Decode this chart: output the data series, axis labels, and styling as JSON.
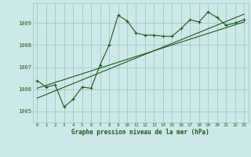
{
  "background_color": "#cce8e8",
  "grid_color": "#aacccc",
  "line_color": "#1a5c1a",
  "title": "Graphe pression niveau de la mer (hPa)",
  "xlim": [
    -0.5,
    23.5
  ],
  "ylim": [
    1004.5,
    1009.9
  ],
  "yticks": [
    1005,
    1006,
    1007,
    1008,
    1009
  ],
  "xticks": [
    0,
    1,
    2,
    3,
    4,
    5,
    6,
    7,
    8,
    9,
    10,
    11,
    12,
    13,
    14,
    15,
    16,
    17,
    18,
    19,
    20,
    21,
    22,
    23
  ],
  "series1_x": [
    0,
    1,
    2,
    3,
    4,
    5,
    6,
    7,
    8,
    9,
    10,
    11,
    12,
    13,
    14,
    15,
    16,
    17,
    18,
    19,
    20,
    21,
    22,
    23
  ],
  "series1_y": [
    1006.4,
    1006.1,
    1006.2,
    1005.2,
    1005.55,
    1006.1,
    1006.05,
    1007.1,
    1008.0,
    1009.35,
    1009.1,
    1008.55,
    1008.45,
    1008.45,
    1008.4,
    1008.4,
    1008.75,
    1009.15,
    1009.05,
    1009.5,
    1009.25,
    1008.9,
    1009.0,
    1009.15
  ],
  "line1_x": [
    0,
    23
  ],
  "line1_y": [
    1006.05,
    1009.05
  ],
  "line2_x": [
    0,
    23
  ],
  "line2_y": [
    1005.6,
    1009.4
  ]
}
